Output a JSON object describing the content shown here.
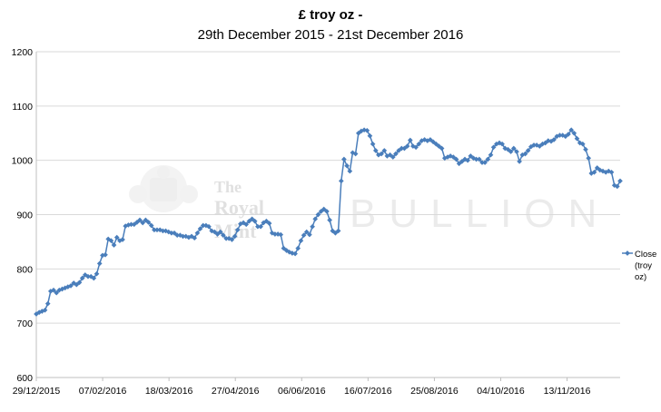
{
  "chart_data": {
    "type": "line",
    "title": "£ troy oz -",
    "subtitle": "29th December 2015 - 21st December 2016",
    "xlabel": "",
    "ylabel": "",
    "ylim": [
      600,
      1200
    ],
    "yticks": [
      "600",
      "700",
      "800",
      "900",
      "1000",
      "1100",
      "1200"
    ],
    "xticks": [
      "29/12/2015",
      "07/02/2016",
      "18/03/2016",
      "27/04/2016",
      "06/06/2016",
      "16/07/2016",
      "25/08/2016",
      "04/10/2016",
      "13/11/2016"
    ],
    "grid": "horizontal",
    "legend_position": "right",
    "watermark": [
      "The",
      "Royal",
      "Mint",
      "BULLION"
    ],
    "color": "#4a7ebb",
    "series": [
      {
        "name": "Close (troy oz)",
        "legend_lines": [
          "Close",
          "(troy",
          "oz)"
        ],
        "values": [
          717,
          720,
          722,
          724,
          736,
          759,
          761,
          756,
          761,
          763,
          765,
          767,
          769,
          774,
          771,
          775,
          783,
          789,
          786,
          786,
          783,
          791,
          810,
          825,
          826,
          855,
          852,
          844,
          858,
          852,
          854,
          879,
          881,
          882,
          882,
          886,
          890,
          885,
          890,
          886,
          880,
          872,
          872,
          872,
          870,
          870,
          868,
          866,
          866,
          862,
          862,
          860,
          860,
          858,
          860,
          857,
          866,
          874,
          880,
          880,
          878,
          870,
          868,
          864,
          868,
          862,
          856,
          856,
          854,
          860,
          872,
          883,
          885,
          882,
          888,
          892,
          888,
          878,
          878,
          885,
          888,
          884,
          866,
          864,
          864,
          863,
          838,
          834,
          831,
          829,
          828,
          838,
          852,
          862,
          868,
          863,
          878,
          892,
          900,
          906,
          910,
          906,
          890,
          870,
          866,
          870,
          962,
          1002,
          990,
          980,
          1014,
          1012,
          1050,
          1054,
          1056,
          1055,
          1045,
          1030,
          1018,
          1010,
          1012,
          1018,
          1008,
          1010,
          1006,
          1012,
          1018,
          1022,
          1022,
          1026,
          1037,
          1026,
          1024,
          1030,
          1036,
          1038,
          1036,
          1038,
          1034,
          1030,
          1026,
          1022,
          1004,
          1006,
          1008,
          1006,
          1002,
          994,
          998,
          1002,
          1000,
          1008,
          1004,
          1002,
          1002,
          996,
          996,
          1002,
          1010,
          1024,
          1030,
          1032,
          1030,
          1022,
          1020,
          1016,
          1022,
          1016,
          998,
          1010,
          1012,
          1018,
          1025,
          1028,
          1028,
          1026,
          1030,
          1032,
          1036,
          1035,
          1038,
          1044,
          1046,
          1046,
          1044,
          1048,
          1056,
          1050,
          1040,
          1032,
          1030,
          1020,
          1004,
          976,
          978,
          986,
          982,
          980,
          978,
          980,
          978,
          954,
          952,
          962
        ]
      }
    ]
  }
}
